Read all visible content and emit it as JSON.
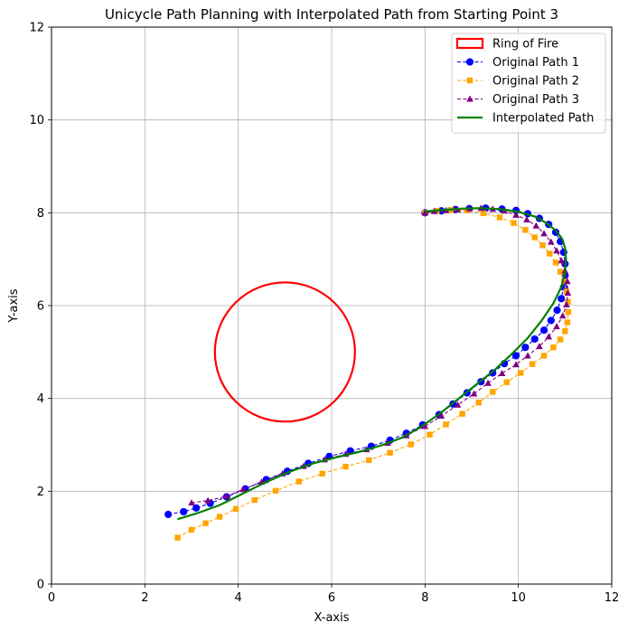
{
  "chart_data": {
    "type": "line",
    "title": "Unicycle Path Planning with Interpolated Path from Starting Point 3",
    "xlabel": "X-axis",
    "ylabel": "Y-axis",
    "xlim": [
      0,
      12
    ],
    "ylim": [
      0,
      12
    ],
    "xticks": [
      0,
      2,
      4,
      6,
      8,
      10,
      12
    ],
    "yticks": [
      0,
      2,
      4,
      6,
      8,
      10,
      12
    ],
    "grid": true,
    "legend_position": "top-right",
    "colors": {
      "ring": "#ff0000",
      "path1": "#0000ff",
      "path2": "#ffa500",
      "path3": "#800080",
      "interpolated": "#008000",
      "grid": "#b0b0b0"
    },
    "ring": {
      "name": "Ring of Fire",
      "center": [
        5,
        5
      ],
      "radius": 1.5
    },
    "series": [
      {
        "name": "Original Path 1",
        "marker": "circle",
        "x": [
          2.5,
          2.83,
          3.1,
          3.4,
          3.75,
          4.15,
          4.6,
          5.05,
          5.5,
          5.95,
          6.4,
          6.85,
          7.25,
          7.6,
          7.95,
          8.3,
          8.6,
          8.9,
          9.2,
          9.45,
          9.7,
          9.95,
          10.15,
          10.35,
          10.55,
          10.7,
          10.83,
          10.92,
          10.97,
          11.0,
          11.0,
          10.97,
          10.9,
          10.8,
          10.65,
          10.45,
          10.2,
          9.95,
          9.65,
          9.3,
          8.95,
          8.65,
          8.35,
          8.0
        ],
        "y": [
          1.5,
          1.56,
          1.64,
          1.74,
          1.88,
          2.05,
          2.25,
          2.43,
          2.6,
          2.75,
          2.87,
          2.97,
          3.1,
          3.25,
          3.43,
          3.65,
          3.88,
          4.12,
          4.36,
          4.55,
          4.75,
          4.92,
          5.1,
          5.28,
          5.47,
          5.68,
          5.9,
          6.15,
          6.4,
          6.65,
          6.9,
          7.15,
          7.38,
          7.58,
          7.75,
          7.88,
          7.98,
          8.05,
          8.08,
          8.1,
          8.09,
          8.07,
          8.04,
          8.0
        ]
      },
      {
        "name": "Original Path 2",
        "marker": "square",
        "x": [
          2.7,
          3.0,
          3.3,
          3.6,
          3.95,
          4.35,
          4.8,
          5.3,
          5.8,
          6.3,
          6.8,
          7.25,
          7.7,
          8.1,
          8.45,
          8.8,
          9.15,
          9.45,
          9.75,
          10.05,
          10.3,
          10.55,
          10.75,
          10.9,
          11.0,
          11.05,
          11.07,
          11.06,
          11.03,
          10.98,
          10.9,
          10.8,
          10.67,
          10.52,
          10.35,
          10.15,
          9.9,
          9.6,
          9.25,
          8.9,
          8.55,
          8.25,
          8.0
        ],
        "y": [
          1.0,
          1.17,
          1.31,
          1.45,
          1.62,
          1.81,
          2.01,
          2.21,
          2.38,
          2.53,
          2.67,
          2.83,
          3.01,
          3.22,
          3.44,
          3.67,
          3.91,
          4.14,
          4.35,
          4.55,
          4.74,
          4.92,
          5.1,
          5.27,
          5.45,
          5.64,
          5.86,
          6.08,
          6.3,
          6.52,
          6.73,
          6.93,
          7.12,
          7.3,
          7.47,
          7.63,
          7.78,
          7.9,
          7.99,
          8.05,
          8.06,
          8.04,
          8.0
        ]
      },
      {
        "name": "Original Path 3",
        "marker": "triangle",
        "x": [
          3.0,
          3.35,
          3.75,
          4.1,
          4.5,
          4.95,
          5.4,
          5.85,
          6.3,
          6.75,
          7.2,
          7.6,
          8.0,
          8.35,
          8.7,
          9.05,
          9.35,
          9.65,
          9.95,
          10.2,
          10.45,
          10.65,
          10.82,
          10.95,
          11.03,
          11.06,
          11.05,
          11.0,
          10.92,
          10.82,
          10.7,
          10.55,
          10.38,
          10.18,
          9.95,
          9.7,
          9.45,
          9.2,
          8.95,
          8.7,
          8.45,
          8.2,
          8.0
        ],
        "y": [
          1.75,
          1.8,
          1.89,
          2.04,
          2.2,
          2.38,
          2.54,
          2.68,
          2.8,
          2.9,
          3.04,
          3.2,
          3.4,
          3.62,
          3.86,
          4.1,
          4.33,
          4.54,
          4.73,
          4.92,
          5.12,
          5.33,
          5.55,
          5.78,
          6.02,
          6.27,
          6.52,
          6.75,
          6.97,
          7.18,
          7.37,
          7.55,
          7.72,
          7.85,
          7.95,
          8.04,
          8.08,
          8.1,
          8.09,
          8.07,
          8.05,
          8.03,
          8.0
        ]
      },
      {
        "name": "Interpolated Path",
        "marker": "none",
        "x": [
          2.7,
          3.1,
          3.6,
          4.1,
          4.6,
          5.1,
          5.6,
          6.1,
          6.6,
          7.1,
          7.5,
          7.9,
          8.3,
          8.7,
          9.1,
          9.5,
          9.85,
          10.2,
          10.5,
          10.75,
          10.92,
          11.0,
          11.02,
          11.0,
          10.93,
          10.8,
          10.6,
          10.35,
          10.0,
          9.6,
          9.2,
          8.8,
          8.4,
          8.0
        ],
        "y": [
          1.4,
          1.52,
          1.7,
          1.95,
          2.2,
          2.42,
          2.6,
          2.73,
          2.85,
          3.0,
          3.15,
          3.38,
          3.66,
          3.98,
          4.3,
          4.62,
          4.95,
          5.3,
          5.68,
          6.05,
          6.4,
          6.72,
          7.0,
          7.25,
          7.45,
          7.62,
          7.78,
          7.92,
          8.02,
          8.08,
          8.1,
          8.09,
          8.06,
          8.03
        ]
      }
    ]
  }
}
